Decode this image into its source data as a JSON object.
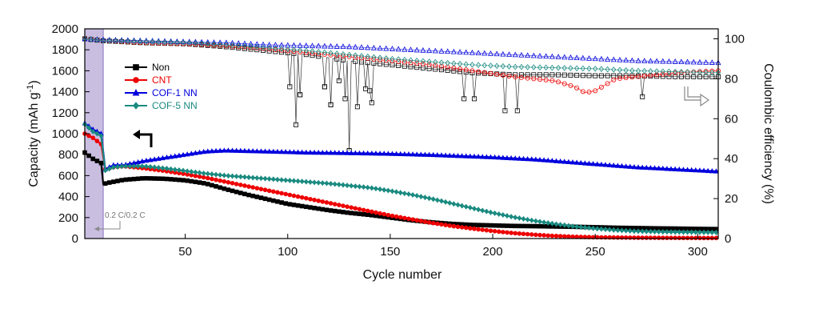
{
  "chart_data": {
    "type": "line",
    "xlabel": "Cycle number",
    "ylabel_left": "Capacity (mAh g",
    "ylabel_left_sup": "-1",
    "ylabel_left_tail": ")",
    "ylabel_right": "Coulombic efficiency (%)",
    "xlim": [
      1,
      310
    ],
    "ylim_left": [
      0,
      2000
    ],
    "ylim_right": [
      0,
      105
    ],
    "x_ticks": [
      50,
      100,
      150,
      200,
      250,
      300
    ],
    "y_left_ticks": [
      0,
      200,
      400,
      600,
      800,
      1000,
      1200,
      1400,
      1600,
      1800,
      2000
    ],
    "y_right_ticks": [
      0,
      20,
      40,
      60,
      80,
      100
    ],
    "annotation": "0.2 C/0.2 C",
    "shaded_region": [
      1,
      10
    ],
    "legend": [
      {
        "name": "Non",
        "color": "#000000",
        "marker": "square"
      },
      {
        "name": "CNT",
        "color": "#ee0000",
        "marker": "circle"
      },
      {
        "name": "COF-1 NN",
        "color": "#0000dd",
        "marker": "triangle"
      },
      {
        "name": "COF-5 NN",
        "color": "#1a8a80",
        "marker": "diamond"
      }
    ],
    "capacity_series": [
      {
        "name": "Non",
        "color": "#000000",
        "x": [
          1,
          5,
          9,
          10,
          12,
          20,
          30,
          40,
          50,
          60,
          70,
          80,
          90,
          100,
          110,
          120,
          130,
          140,
          150,
          160,
          170,
          180,
          190,
          200,
          210,
          220,
          230,
          240,
          250,
          260,
          270,
          280,
          290,
          300,
          310
        ],
        "y": [
          820,
          760,
          720,
          520,
          530,
          560,
          575,
          570,
          555,
          525,
          470,
          420,
          375,
          330,
          300,
          270,
          245,
          225,
          200,
          175,
          155,
          140,
          130,
          125,
          120,
          118,
          115,
          112,
          108,
          103,
          100,
          97,
          95,
          92,
          90
        ]
      },
      {
        "name": "CNT",
        "color": "#ee0000",
        "x": [
          1,
          5,
          9,
          11,
          15,
          20,
          30,
          40,
          50,
          60,
          70,
          80,
          90,
          100,
          110,
          120,
          130,
          140,
          150,
          160,
          170,
          180,
          190,
          200,
          210,
          220,
          230,
          240,
          250,
          260,
          270,
          280,
          290,
          300,
          310
        ],
        "y": [
          1000,
          960,
          900,
          660,
          680,
          690,
          670,
          645,
          615,
          580,
          540,
          500,
          460,
          420,
          380,
          340,
          300,
          260,
          220,
          185,
          150,
          120,
          95,
          72,
          52,
          37,
          25,
          17,
          12,
          10,
          8,
          7,
          6,
          5,
          5
        ]
      },
      {
        "name": "COF-1 NN",
        "color": "#0000dd",
        "x": [
          1,
          5,
          9,
          11,
          15,
          20,
          30,
          40,
          50,
          60,
          70,
          80,
          90,
          100,
          110,
          120,
          130,
          140,
          150,
          160,
          170,
          180,
          190,
          200,
          210,
          220,
          230,
          240,
          250,
          260,
          270,
          280,
          290,
          300,
          310
        ],
        "y": [
          1100,
          1040,
          1000,
          660,
          700,
          700,
          740,
          770,
          800,
          830,
          840,
          835,
          830,
          825,
          820,
          818,
          815,
          812,
          808,
          803,
          798,
          790,
          783,
          775,
          765,
          755,
          740,
          725,
          710,
          695,
          680,
          670,
          660,
          650,
          640
        ]
      },
      {
        "name": "COF-5 NN",
        "color": "#1a8a80",
        "x": [
          1,
          5,
          9,
          11,
          15,
          20,
          30,
          40,
          50,
          60,
          70,
          80,
          90,
          100,
          110,
          120,
          130,
          140,
          150,
          160,
          170,
          180,
          190,
          200,
          210,
          220,
          230,
          240,
          250,
          260,
          270,
          280,
          290,
          300,
          310
        ],
        "y": [
          1090,
          1020,
          980,
          650,
          680,
          690,
          690,
          670,
          645,
          620,
          600,
          585,
          570,
          555,
          540,
          525,
          505,
          485,
          455,
          420,
          380,
          335,
          290,
          245,
          205,
          170,
          140,
          115,
          95,
          80,
          70,
          65,
          62,
          60,
          58
        ]
      }
    ],
    "ce_series": [
      {
        "name": "Non",
        "color": "#000000",
        "x": [
          1,
          10,
          30,
          50,
          70,
          90,
          110,
          130,
          150,
          170,
          190,
          210,
          230,
          250,
          270,
          290,
          310
        ],
        "y": [
          100,
          99,
          98,
          97.5,
          96,
          94,
          92,
          89,
          87,
          85,
          83,
          82,
          82,
          81.5,
          81.5,
          81,
          81
        ],
        "drops": [
          [
            101,
            76
          ],
          [
            104,
            57
          ],
          [
            106,
            72
          ],
          [
            118,
            76
          ],
          [
            121,
            67
          ],
          [
            125,
            79
          ],
          [
            128,
            70
          ],
          [
            130,
            44
          ],
          [
            134,
            66
          ],
          [
            138,
            75
          ],
          [
            140,
            74
          ],
          [
            141,
            68
          ],
          [
            186,
            70
          ],
          [
            191,
            70
          ],
          [
            206,
            64
          ],
          [
            212,
            64
          ],
          [
            273,
            71
          ]
        ]
      },
      {
        "name": "CNT",
        "color": "#ee0000",
        "x": [
          1,
          10,
          30,
          50,
          70,
          90,
          110,
          130,
          150,
          170,
          190,
          210,
          230,
          240,
          245,
          250,
          255,
          260,
          270,
          290,
          310
        ],
        "y": [
          100,
          99,
          98,
          97.5,
          96.5,
          95,
          93,
          91,
          89,
          87,
          84,
          81,
          79,
          76,
          73,
          74,
          77,
          80,
          81,
          83,
          84
        ]
      },
      {
        "name": "COF-1 NN",
        "color": "#0000dd",
        "x": [
          1,
          10,
          30,
          50,
          70,
          90,
          110,
          130,
          150,
          170,
          190,
          210,
          230,
          250,
          270,
          290,
          310
        ],
        "y": [
          100,
          99.5,
          99,
          98.5,
          98,
          97,
          96.5,
          96,
          95,
          94,
          93,
          92,
          91,
          90,
          89,
          88.5,
          88
        ]
      },
      {
        "name": "COF-5 NN",
        "color": "#1a8a80",
        "x": [
          1,
          10,
          30,
          50,
          70,
          90,
          110,
          130,
          150,
          170,
          190,
          210,
          230,
          250,
          270,
          290,
          310
        ],
        "y": [
          100,
          99,
          98.5,
          98,
          97,
          95.5,
          94,
          92,
          90,
          88.5,
          87,
          86,
          85.5,
          85,
          84,
          83.5,
          83
        ]
      }
    ]
  }
}
